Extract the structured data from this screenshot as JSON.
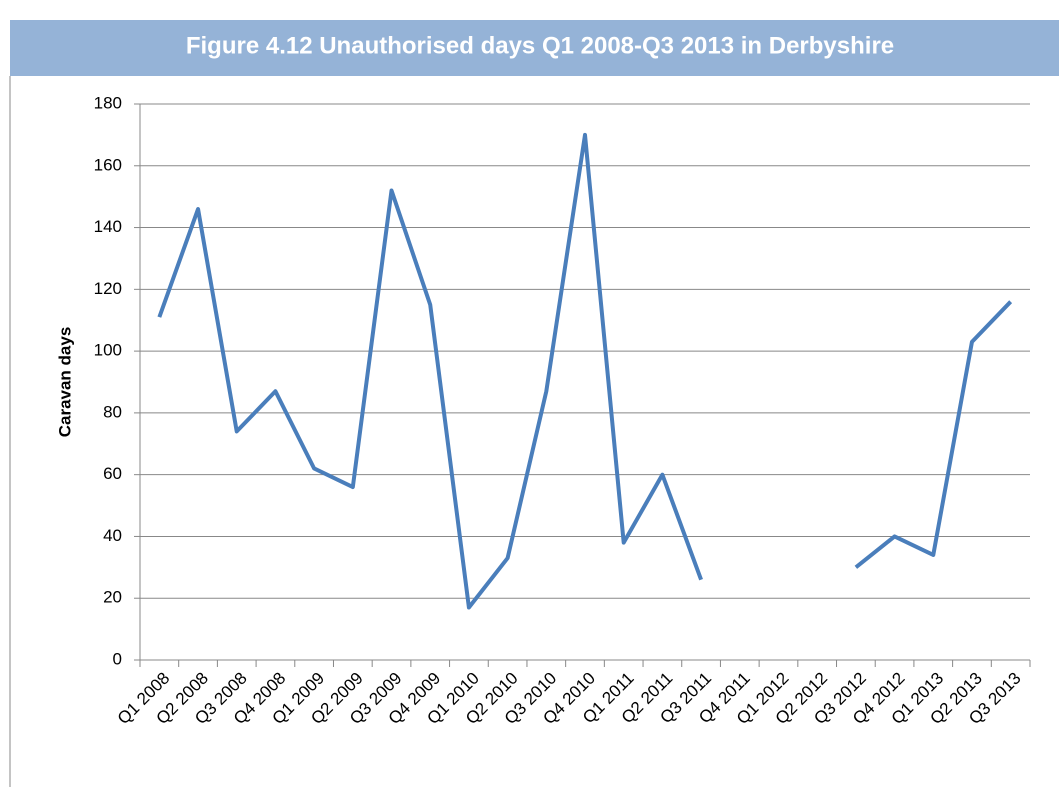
{
  "chart_data": {
    "type": "line",
    "title": "Figure 4.12 Unauthorised days Q1 2008-Q3 2013 in Derbyshire",
    "ylabel": "Caravan days",
    "categories": [
      "Q1 2008",
      "Q2 2008",
      "Q3 2008",
      "Q4 2008",
      "Q1 2009",
      "Q2 2009",
      "Q3 2009",
      "Q4 2009",
      "Q1 2010",
      "Q2 2010",
      "Q3 2010",
      "Q4 2010",
      "Q1 2011",
      "Q2 2011",
      "Q3 2011",
      "Q4 2011",
      "Q1 2012",
      "Q2 2012",
      "Q3 2012",
      "Q4 2012",
      "Q1 2013",
      "Q2 2013",
      "Q3 2013"
    ],
    "series": [
      {
        "name": "Caravan days",
        "color": "#4a7ebb",
        "values": [
          111,
          146,
          74,
          87,
          62,
          56,
          152,
          115,
          17,
          33,
          87,
          170,
          38,
          60,
          26,
          null,
          null,
          null,
          30,
          40,
          34,
          103,
          116
        ]
      }
    ],
    "ylim": [
      0,
      180
    ],
    "yticks": [
      0,
      20,
      40,
      60,
      80,
      100,
      120,
      140,
      160,
      180
    ],
    "grid": true
  }
}
